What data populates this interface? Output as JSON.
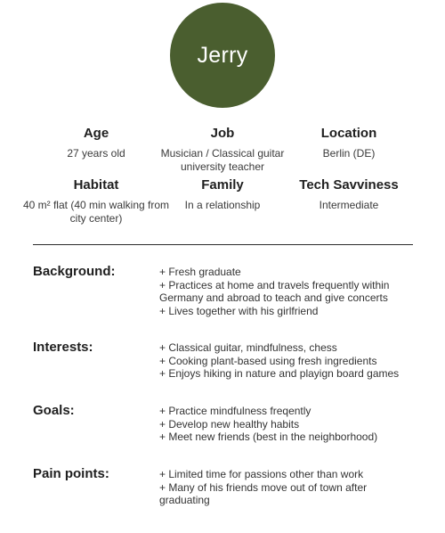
{
  "persona": {
    "name": "Jerry",
    "avatar_color": "#4a5e2f"
  },
  "attributes": [
    {
      "title": "Age",
      "value": "27 years old"
    },
    {
      "title": "Job",
      "value": "Musician / Classical guitar university teacher"
    },
    {
      "title": "Location",
      "value": "Berlin (DE)"
    },
    {
      "title": "Habitat",
      "value": "40 m² flat (40 min walking from city center)"
    },
    {
      "title": "Family",
      "value": "In a relationship"
    },
    {
      "title": "Tech Savviness",
      "value": "Intermediate"
    }
  ],
  "sections": [
    {
      "title": "Background:",
      "items": [
        "+ Fresh graduate",
        "+ Practices at home and travels frequently within Germany and abroad to teach and give concerts",
        "+ Lives together with his girlfriend"
      ]
    },
    {
      "title": "Interests:",
      "items": [
        "+ Classical guitar, mindfulness, chess",
        "+ Cooking plant-based using fresh ingredients",
        "+ Enjoys hiking in nature and playign board games"
      ]
    },
    {
      "title": "Goals:",
      "items": [
        "+ Practice mindfulness freqently",
        "+ Develop new healthy habits",
        "+ Meet new friends (best in the neighborhood)"
      ]
    },
    {
      "title": "Pain points:",
      "items": [
        "+ Limited time for passions other than work",
        "+ Many of his friends move out of town after graduating"
      ]
    }
  ]
}
